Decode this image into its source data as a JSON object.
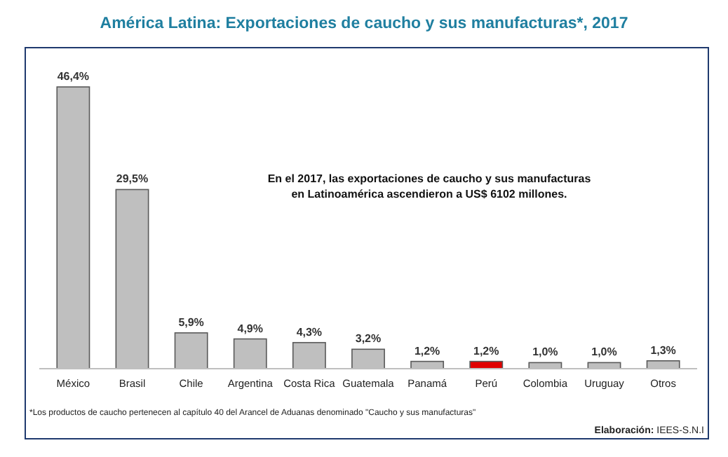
{
  "chart_data": {
    "type": "bar",
    "title": "América Latina: Exportaciones de caucho y sus manufacturas*, 2017",
    "categories": [
      "México",
      "Brasil",
      "Chile",
      "Argentina",
      "Costa Rica",
      "Guatemala",
      "Panamá",
      "Perú",
      "Colombia",
      "Uruguay",
      "Otros"
    ],
    "values": [
      46.4,
      29.5,
      5.9,
      4.9,
      4.3,
      3.2,
      1.2,
      1.2,
      1.0,
      1.0,
      1.3
    ],
    "value_labels": [
      "46,4%",
      "29,5%",
      "5,9%",
      "4,9%",
      "4,3%",
      "3,2%",
      "1,2%",
      "1,2%",
      "1,0%",
      "1,0%",
      "1,3%"
    ],
    "colors": [
      "#bfbfbf",
      "#bfbfbf",
      "#bfbfbf",
      "#bfbfbf",
      "#bfbfbf",
      "#bfbfbf",
      "#bfbfbf",
      "#e00000",
      "#bfbfbf",
      "#bfbfbf",
      "#bfbfbf"
    ],
    "annotations": [
      "En el 2017, las exportaciones de caucho y sus manufacturas en Latinoamérica ascendieron a US$ 6102 millones.",
      "*Los productos de caucho pertenecen al capítulo 40 del Arancel de Aduanas denominado \"Caucho y sus manufacturas\"",
      "Elaboración: IEES-S.N.I"
    ],
    "grid": false
  }
}
